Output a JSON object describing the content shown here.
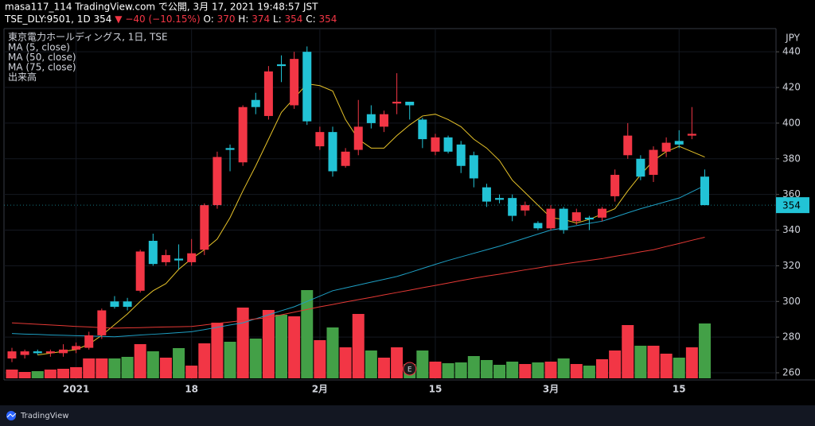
{
  "header": {
    "line1": "masa117_114 TradingView.com で公開, 3月 17, 2021 19:48:57 JST",
    "symbol": "TSE_DLY:9501, 1D",
    "price": "354",
    "change": "−40 (−10.15%)",
    "ohlc": [
      {
        "label": "O:",
        "value": "370"
      },
      {
        "label": "H:",
        "value": "374"
      },
      {
        "label": "L:",
        "value": "354"
      },
      {
        "label": "C:",
        "value": "354"
      }
    ]
  },
  "footer": {
    "brand": "TradingView"
  },
  "chart_data": {
    "type": "candlestick",
    "title": "東京電力ホールディングス, 1日, TSE",
    "categories": [
      null,
      null,
      null,
      null,
      null,
      "2021",
      null,
      null,
      null,
      null,
      null,
      null,
      null,
      null,
      "18",
      null,
      null,
      null,
      null,
      null,
      null,
      null,
      null,
      null,
      "2月",
      null,
      null,
      null,
      null,
      null,
      null,
      null,
      null,
      "15",
      null,
      null,
      null,
      null,
      null,
      null,
      null,
      null,
      "3月",
      null,
      null,
      null,
      null,
      null,
      null,
      null,
      null,
      null,
      "15",
      null,
      null
    ],
    "open": [
      268,
      270,
      272,
      271,
      271,
      273,
      274,
      281,
      300,
      300,
      306,
      334,
      322,
      324,
      322,
      329,
      354,
      386,
      378,
      413,
      404,
      433,
      410,
      440,
      387,
      395,
      376,
      385,
      405,
      398,
      411,
      412,
      402,
      384,
      392,
      388,
      382,
      364,
      358,
      358,
      351,
      344,
      341,
      352,
      345,
      347,
      347,
      359,
      382,
      380,
      371,
      384,
      390,
      393,
      370
    ],
    "high": [
      274,
      273,
      273,
      273,
      276,
      277,
      283,
      296,
      303,
      302,
      329,
      338,
      329,
      332,
      335,
      355,
      384,
      388,
      410,
      417,
      432,
      438,
      440,
      443,
      398,
      398,
      386,
      413,
      410,
      407,
      428,
      412,
      403,
      394,
      393,
      390,
      384,
      366,
      360,
      360,
      356,
      345,
      354,
      353,
      352,
      348,
      353,
      374,
      400,
      382,
      387,
      392,
      396,
      409,
      374
    ],
    "low": [
      266,
      268,
      270,
      269,
      269,
      271,
      273,
      279,
      296,
      295,
      305,
      320,
      320,
      318,
      320,
      326,
      352,
      373,
      376,
      405,
      402,
      423,
      408,
      399,
      385,
      370,
      375,
      382,
      397,
      395,
      405,
      402,
      386,
      382,
      383,
      372,
      364,
      353,
      355,
      345,
      348,
      340,
      340,
      338,
      343,
      340,
      345,
      356,
      380,
      368,
      367,
      381,
      386,
      391,
      354
    ],
    "close": [
      272,
      272,
      271,
      272,
      273,
      275,
      281,
      295,
      297,
      297,
      328,
      321,
      326,
      323,
      327,
      354,
      381,
      385,
      409,
      409,
      429,
      432,
      436,
      401,
      395,
      373,
      384,
      398,
      400,
      405,
      412,
      410,
      391,
      392,
      384,
      376,
      369,
      356,
      357,
      348,
      354,
      341,
      352,
      340,
      350,
      346,
      352,
      371,
      393,
      370,
      385,
      389,
      388,
      394,
      354
    ],
    "up_color": "#f23645",
    "down_color": "#22c3d6",
    "ylim": [
      256,
      453
    ],
    "yticks": [
      260,
      280,
      300,
      320,
      340,
      360,
      380,
      400,
      420,
      440
    ],
    "currency": "JPY",
    "last_price": 354,
    "event_marker": "E",
    "event_index": 31,
    "series": [
      {
        "name": "MA (5, close)",
        "color": "#e6c229",
        "values": [
          null,
          null,
          270,
          271,
          272,
          273,
          276,
          281,
          287,
          293,
          300,
          306,
          310,
          318,
          324,
          329,
          335,
          347,
          362,
          376,
          391,
          406,
          414,
          422,
          421,
          418,
          402,
          391,
          386,
          386,
          393,
          399,
          404,
          405,
          402,
          398,
          391,
          386,
          379,
          368,
          361,
          354,
          347,
          346,
          344,
          346,
          349,
          352,
          362,
          371,
          379,
          384,
          387,
          384,
          381
        ]
      },
      {
        "name": "MA (50, close)",
        "color": "#1e9fc4",
        "values": [
          282,
          281.7,
          281.5,
          281.2,
          281,
          280.8,
          280.6,
          280.4,
          280.2,
          280.7,
          281.2,
          281.6,
          282,
          282.5,
          283,
          284.2,
          285.5,
          286.8,
          288,
          290.3,
          292.5,
          294.8,
          297,
          300,
          303,
          306,
          307.6,
          309.2,
          310.8,
          312.4,
          314,
          316.2,
          318.5,
          320.8,
          323,
          325,
          327,
          329,
          331,
          333.2,
          335.5,
          337.8,
          340,
          341.2,
          342.5,
          343.8,
          345,
          347.3,
          349.7,
          352,
          354,
          356,
          358,
          361.5,
          365
        ]
      },
      {
        "name": "MA (75, close)",
        "color": "#e53935",
        "values": [
          288,
          287.6,
          287.2,
          286.8,
          286.4,
          286,
          285.7,
          285.3,
          285,
          285.2,
          285.3,
          285.5,
          285.7,
          285.8,
          286,
          286.8,
          287.7,
          288.5,
          289.3,
          290.2,
          291,
          292.5,
          294,
          295.5,
          297,
          298.3,
          299.7,
          301,
          302.3,
          303.7,
          305,
          306.3,
          307.7,
          309,
          310.3,
          311.7,
          313,
          314.2,
          315.3,
          316.5,
          317.7,
          318.8,
          320,
          321,
          322,
          323,
          324,
          325.3,
          326.5,
          327.8,
          329,
          330.8,
          332.5,
          334.3,
          336
        ]
      }
    ],
    "volume": {
      "name": "出来高",
      "vlim": [
        0,
        120
      ],
      "up_color": "#f23645",
      "down_color": "#43a047",
      "values": [
        11,
        8,
        9,
        11,
        12,
        14,
        25,
        25,
        25,
        27,
        43,
        34,
        26,
        38,
        16,
        44,
        70,
        46,
        89,
        50,
        86,
        80,
        78,
        111,
        48,
        64,
        39,
        81,
        35,
        26,
        39,
        18,
        35,
        21,
        19,
        20,
        28,
        23,
        17,
        21,
        18,
        20,
        21,
        25,
        18,
        16,
        24,
        35,
        67,
        41,
        41,
        31,
        26,
        39,
        69
      ]
    }
  }
}
